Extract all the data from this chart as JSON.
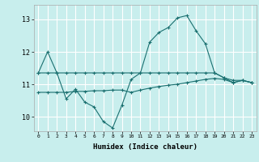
{
  "xlabel": "Humidex (Indice chaleur)",
  "ylabel": "",
  "xlim": [
    -0.5,
    23.5
  ],
  "ylim": [
    9.55,
    13.45
  ],
  "yticks": [
    10,
    11,
    12,
    13
  ],
  "xticks": [
    0,
    1,
    2,
    3,
    4,
    5,
    6,
    7,
    8,
    9,
    10,
    11,
    12,
    13,
    14,
    15,
    16,
    17,
    18,
    19,
    20,
    21,
    22,
    23
  ],
  "bg_color": "#c8eeed",
  "line_color": "#1a7070",
  "grid_color": "#ffffff",
  "line1_x": [
    0,
    1,
    2,
    3,
    4,
    5,
    6,
    7,
    8,
    9,
    10,
    11,
    12,
    13,
    14,
    15,
    16,
    17,
    18,
    19,
    20,
    21,
    22,
    23
  ],
  "line1_y": [
    11.35,
    12.0,
    11.35,
    10.55,
    10.85,
    10.45,
    10.3,
    9.85,
    9.65,
    10.35,
    11.15,
    11.35,
    12.3,
    12.6,
    12.75,
    13.05,
    13.12,
    12.65,
    12.25,
    11.35,
    11.2,
    11.05,
    11.12,
    11.05
  ],
  "line2_x": [
    0,
    1,
    2,
    3,
    4,
    5,
    6,
    7,
    8,
    9,
    10,
    11,
    12,
    13,
    14,
    15,
    16,
    17,
    18,
    19,
    20,
    21,
    22,
    23
  ],
  "line2_y": [
    11.35,
    11.35,
    11.35,
    11.35,
    11.35,
    11.35,
    11.35,
    11.35,
    11.35,
    11.35,
    11.35,
    11.35,
    11.35,
    11.35,
    11.35,
    11.35,
    11.35,
    11.35,
    11.35,
    11.35,
    11.2,
    11.12,
    11.12,
    11.05
  ],
  "line3_x": [
    0,
    1,
    2,
    3,
    4,
    5,
    6,
    7,
    8,
    9,
    10,
    11,
    12,
    13,
    14,
    15,
    16,
    17,
    18,
    19,
    20,
    21,
    22,
    23
  ],
  "line3_y": [
    10.75,
    10.75,
    10.75,
    10.75,
    10.78,
    10.78,
    10.8,
    10.8,
    10.82,
    10.82,
    10.75,
    10.82,
    10.88,
    10.93,
    10.97,
    11.0,
    11.05,
    11.1,
    11.15,
    11.18,
    11.15,
    11.05,
    11.12,
    11.05
  ]
}
